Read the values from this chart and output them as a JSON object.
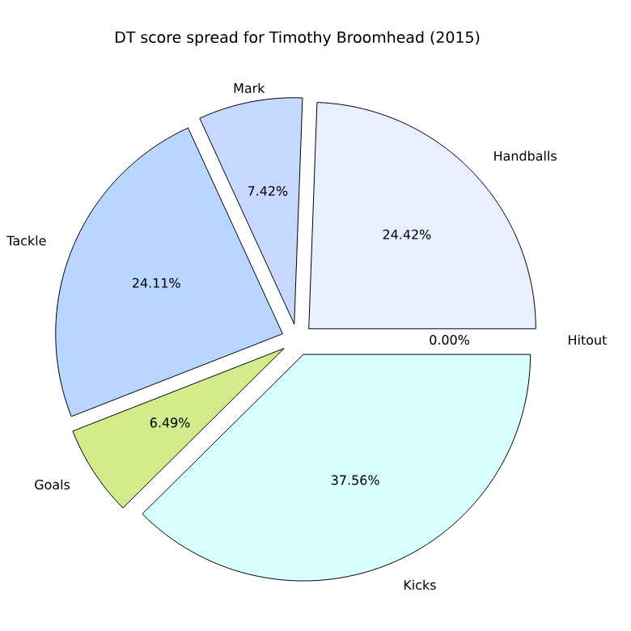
{
  "chart_data": {
    "type": "pie",
    "title": "DT score spread for Timothy Broomhead (2015)",
    "categories": [
      "Handballs",
      "Mark",
      "Tackle",
      "Goals",
      "Kicks",
      "Hitout"
    ],
    "values": [
      24.42,
      7.42,
      24.11,
      6.49,
      37.56,
      0.0
    ],
    "value_labels": [
      "24.42%",
      "7.42%",
      "24.11%",
      "6.49%",
      "37.56%",
      "0.00%"
    ],
    "colors": [
      "#e8f0ff",
      "#c6d8ff",
      "#b8d6ff",
      "#d2ec8c",
      "#d8ffff",
      "#ffffff"
    ]
  }
}
